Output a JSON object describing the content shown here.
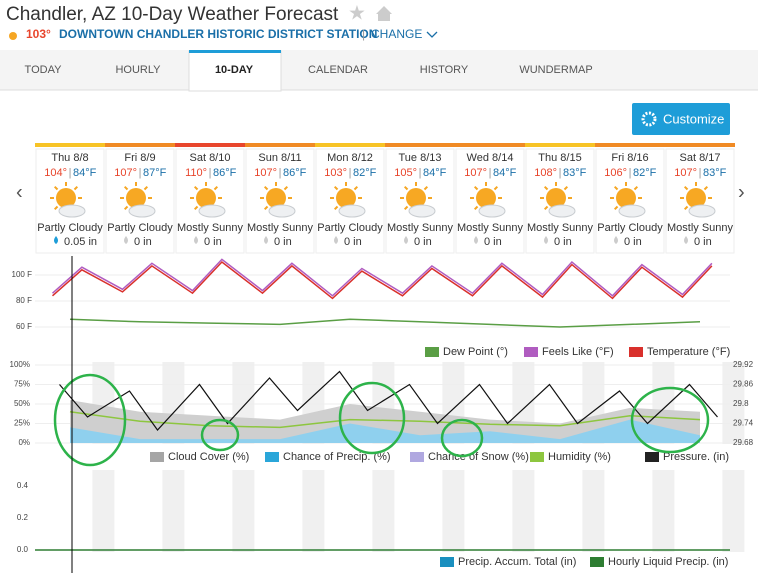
{
  "header": {
    "title": "Chandler, AZ 10-Day Weather Forecast",
    "current_temp": "103°",
    "station": "DOWNTOWN CHANDLER HISTORIC DISTRICT STATION",
    "change": "CHANGE"
  },
  "tabs": [
    "TODAY",
    "HOURLY",
    "10-DAY",
    "CALENDAR",
    "HISTORY",
    "WUNDERMAP"
  ],
  "customize": "Customize",
  "days": [
    {
      "date": "Thu 8/8",
      "high": "104°",
      "low": "84°F",
      "condition": "Partly Cloudy",
      "precip": "0.05 in"
    },
    {
      "date": "Fri 8/9",
      "high": "107°",
      "low": "87°F",
      "condition": "Partly Cloudy",
      "precip": "0 in"
    },
    {
      "date": "Sat 8/10",
      "high": "110°",
      "low": "86°F",
      "condition": "Mostly Sunny",
      "precip": "0 in"
    },
    {
      "date": "Sun 8/11",
      "high": "107°",
      "low": "86°F",
      "condition": "Mostly Sunny",
      "precip": "0 in"
    },
    {
      "date": "Mon 8/12",
      "high": "103°",
      "low": "82°F",
      "condition": "Partly Cloudy",
      "precip": "0 in"
    },
    {
      "date": "Tue 8/13",
      "high": "105°",
      "low": "84°F",
      "condition": "Mostly Sunny",
      "precip": "0 in"
    },
    {
      "date": "Wed 8/14",
      "high": "107°",
      "low": "84°F",
      "condition": "Mostly Sunny",
      "precip": "0 in"
    },
    {
      "date": "Thu 8/15",
      "high": "108°",
      "low": "83°F",
      "condition": "Mostly Sunny",
      "precip": "0 in"
    },
    {
      "date": "Fri 8/16",
      "high": "106°",
      "low": "82°F",
      "condition": "Partly Cloudy",
      "precip": "0 in"
    },
    {
      "date": "Sat 8/17",
      "high": "107°",
      "low": "83°F",
      "condition": "Mostly Sunny",
      "precip": "0 in"
    }
  ],
  "temp_chart": {
    "yticks": [
      {
        "value": 100,
        "label": "100 F"
      },
      {
        "value": 80,
        "label": "80 F"
      },
      {
        "value": 60,
        "label": "60 F"
      }
    ],
    "dew_point": [
      66,
      64,
      63,
      62,
      66,
      64,
      62,
      60,
      62,
      64
    ],
    "feels_like": [
      86,
      106,
      89,
      109,
      88,
      112,
      88,
      109,
      84,
      105,
      86,
      107,
      86,
      109,
      85,
      110,
      84,
      108,
      85,
      109
    ],
    "legend": [
      "Dew Point (°)",
      "Feels Like (°F)",
      "Temperature (°F)"
    ]
  },
  "cond_chart": {
    "yticks": [
      {
        "value": 100,
        "label": "100%"
      },
      {
        "value": 75,
        "label": "75%"
      },
      {
        "value": 50,
        "label": "50%"
      },
      {
        "value": 25,
        "label": "25%"
      },
      {
        "value": 0,
        "label": "0%"
      }
    ],
    "y2ticks": [
      29.92,
      29.86,
      29.8,
      29.74,
      29.68
    ],
    "cloud_cover": [
      55,
      40,
      35,
      30,
      50,
      40,
      30,
      25,
      45,
      40
    ],
    "precip_chance": [
      20,
      5,
      5,
      5,
      25,
      10,
      15,
      5,
      30,
      10
    ],
    "humidity": [
      40,
      28,
      22,
      20,
      30,
      28,
      24,
      22,
      35,
      30
    ],
    "pressure": [
      29.86,
      29.76,
      29.84,
      29.72,
      29.86,
      29.74,
      29.88,
      29.78,
      29.9,
      29.78,
      29.86,
      29.74,
      29.86,
      29.74,
      29.86,
      29.74,
      29.84,
      29.74,
      29.86,
      29.76
    ],
    "legend": [
      "Cloud Cover (%)",
      "Chance of Precip. (%)",
      "Chance of Snow (%)",
      "Humidity (%)",
      "Pressure. (in)"
    ]
  },
  "precip_chart": {
    "yticks": [
      0.4,
      0.2,
      {
        "value": 0,
        "label": "0.0"
      }
    ],
    "legend": [
      "Precip. Accum. Total (in)",
      "Hourly Liquid Precip. (in)"
    ]
  }
}
